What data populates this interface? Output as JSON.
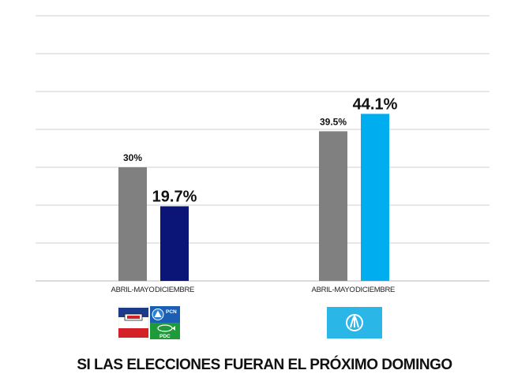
{
  "chart_data": {
    "type": "bar",
    "ylim": [
      0,
      70
    ],
    "grid": true,
    "groups": [
      {
        "bars": [
          {
            "category": "ABRIL-MAYO",
            "value": 30,
            "label": "30%",
            "color": "#808080",
            "emphasis": false
          },
          {
            "category": "DICIEMBRE",
            "value": 19.7,
            "label": "19.7%",
            "color": "#0b1577",
            "emphasis": true
          }
        ],
        "logo": "party-coalition-logos-icon",
        "logo_texts": [
          "PCN",
          "PDC"
        ]
      },
      {
        "bars": [
          {
            "category": "ABRIL-MAYO",
            "value": 39.5,
            "label": "39.5%",
            "color": "#808080",
            "emphasis": false
          },
          {
            "category": "DICIEMBRE",
            "value": 44.1,
            "label": "44.1%",
            "color": "#00adef",
            "emphasis": true
          }
        ],
        "logo": "nuevas-ideas-logo-icon",
        "logo_texts": []
      }
    ]
  },
  "footer": {
    "title": "SI LAS ELECCIONES FUERAN EL PRÓXIMO DOMINGO"
  },
  "colors": {
    "grid": "#cfcfcf",
    "label_dark": "#111111",
    "arena_blue": "#1b3a8c",
    "arena_red": "#d42027",
    "gana_cyan": "#2bb6e8"
  }
}
